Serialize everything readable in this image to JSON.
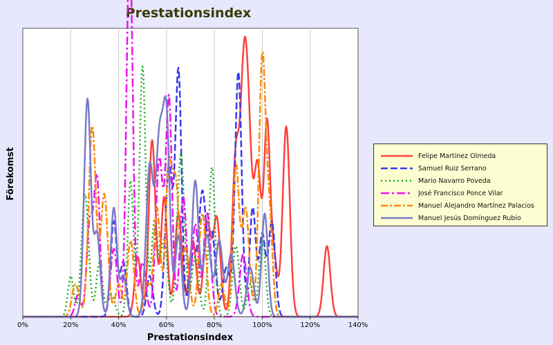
{
  "chart_data": {
    "type": "line",
    "title": "Prestationsindex",
    "xlabel": "Prestationsindex",
    "ylabel": "Förekomst",
    "xlim": [
      0,
      140
    ],
    "x_ticks": [
      "0%",
      "20%",
      "40%",
      "60%",
      "80%",
      "100%",
      "120%",
      "140%"
    ],
    "grid": "vertical",
    "legend_position": "right",
    "series": [
      {
        "name": "Felipe Martinez Olmeda",
        "color": "#ff4040",
        "dash": "solid",
        "peaks": [
          [
            48,
            0.22,
            1.3
          ],
          [
            54,
            0.65,
            1.4
          ],
          [
            59,
            0.44,
            1.3
          ],
          [
            65,
            0.38,
            1.5
          ],
          [
            71,
            0.28,
            1.5
          ],
          [
            77,
            0.34,
            1.5
          ],
          [
            81,
            0.36,
            1.5
          ],
          [
            89,
            0.6,
            1.5
          ],
          [
            92,
            0.6,
            1.3
          ],
          [
            94,
            0.7,
            1.5
          ],
          [
            98,
            0.55,
            1.5
          ],
          [
            102,
            0.7,
            1.3
          ],
          [
            105,
            0.2,
            1.3
          ],
          [
            110,
            0.7,
            1.5
          ],
          [
            127,
            0.26,
            1.4
          ]
        ]
      },
      {
        "name": "Samuel Ruiz Serrano",
        "color": "#3a3aee",
        "dash": "10 4",
        "peaks": [
          [
            38,
            0.35,
            1.3
          ],
          [
            42,
            0.2,
            1.3
          ],
          [
            53,
            0.15,
            1.3
          ],
          [
            61,
            0.55,
            1.5
          ],
          [
            65,
            0.9,
            1.3
          ],
          [
            71,
            0.22,
            1.5
          ],
          [
            75,
            0.45,
            1.5
          ],
          [
            79,
            0.3,
            1.5
          ],
          [
            85,
            0.18,
            1.5
          ],
          [
            90,
            0.9,
            1.4
          ],
          [
            96,
            0.4,
            1.3
          ],
          [
            100,
            0.3,
            1.3
          ],
          [
            104,
            0.35,
            1.4
          ]
        ]
      },
      {
        "name": "Mario Navarro Poveda",
        "color": "#11aa11",
        "dash": "2 4",
        "peaks": [
          [
            20,
            0.15,
            1.2
          ],
          [
            26,
            0.45,
            1.5
          ],
          [
            32,
            0.2,
            1.3
          ],
          [
            37,
            0.08,
            1.5
          ],
          [
            45,
            0.5,
            1.2
          ],
          [
            50,
            0.92,
            1.3
          ],
          [
            55,
            0.35,
            1.3
          ],
          [
            59,
            0.28,
            1.5
          ],
          [
            66,
            0.6,
            1.5
          ],
          [
            72,
            0.22,
            1.5
          ],
          [
            79,
            0.55,
            1.3
          ],
          [
            89,
            0.26,
            1.4
          ],
          [
            95,
            0.12,
            1.3
          ],
          [
            100,
            0.3,
            1.3
          ]
        ]
      },
      {
        "name": "José Francisco Ponce Vilar",
        "color": "#ee11ee",
        "dash": "12 4 3 4",
        "peaks": [
          [
            23,
            0.08,
            1.2
          ],
          [
            28,
            0.35,
            1.3
          ],
          [
            31,
            0.5,
            1.2
          ],
          [
            38,
            0.25,
            1.4
          ],
          [
            44,
            0.6,
            1.2
          ],
          [
            45,
            0.9,
            1.2
          ],
          [
            50,
            0.2,
            1.4
          ],
          [
            57,
            0.58,
            1.5
          ],
          [
            61,
            0.8,
            1.3
          ],
          [
            67,
            0.44,
            1.4
          ],
          [
            72,
            0.34,
            1.3
          ],
          [
            77,
            0.38,
            1.5
          ],
          [
            92,
            0.23,
            1.5
          ]
        ]
      },
      {
        "name": "Manuel Alejandro Martínez Palacios",
        "color": "#ff8800",
        "dash": "10 3 3 3",
        "peaks": [
          [
            22,
            0.12,
            1.5
          ],
          [
            29,
            0.7,
            1.5
          ],
          [
            34,
            0.45,
            1.5
          ],
          [
            40,
            0.12,
            1.3
          ],
          [
            45,
            0.28,
            1.4
          ],
          [
            52,
            0.12,
            1.3
          ],
          [
            56,
            0.4,
            1.3
          ],
          [
            61,
            0.55,
            1.4
          ],
          [
            64,
            0.45,
            1.3
          ],
          [
            68,
            0.25,
            1.5
          ],
          [
            75,
            0.38,
            1.5
          ],
          [
            83,
            0.12,
            1.3
          ],
          [
            89,
            0.55,
            1.3
          ],
          [
            93,
            0.4,
            1.5
          ],
          [
            100,
            0.95,
            1.4
          ],
          [
            103,
            0.35,
            1.3
          ]
        ]
      },
      {
        "name": "Manuel Jesús Domínguez Rubio",
        "color": "#7a7ac8",
        "dash": "solid",
        "peaks": [
          [
            27,
            0.8,
            1.4
          ],
          [
            31,
            0.3,
            1.3
          ],
          [
            38,
            0.4,
            1.3
          ],
          [
            42,
            0.15,
            1.3
          ],
          [
            53,
            0.55,
            1.5
          ],
          [
            57,
            0.62,
            1.5
          ],
          [
            60,
            0.7,
            1.4
          ],
          [
            65,
            0.3,
            1.3
          ],
          [
            72,
            0.5,
            1.4
          ],
          [
            77,
            0.3,
            1.5
          ],
          [
            82,
            0.28,
            1.5
          ],
          [
            87,
            0.23,
            1.5
          ],
          [
            95,
            0.18,
            1.5
          ],
          [
            101,
            0.38,
            1.3
          ]
        ]
      }
    ]
  }
}
